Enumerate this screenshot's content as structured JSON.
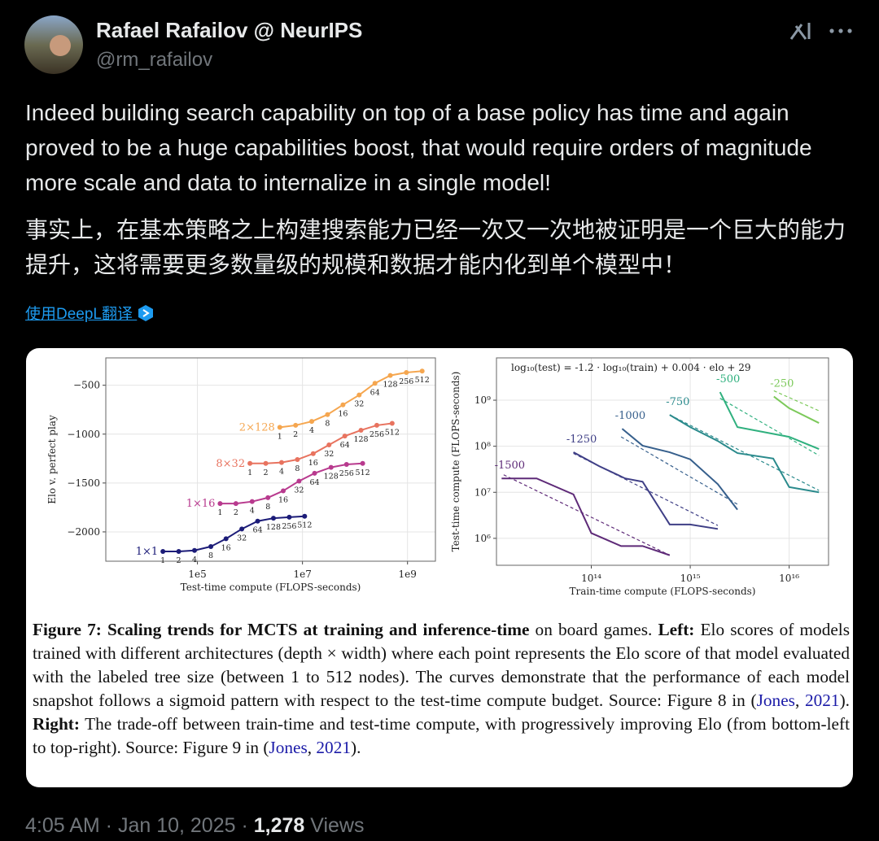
{
  "post": {
    "author": {
      "name": "Rafael Rafailov @ NeurIPS",
      "handle": "@rm_rafailov"
    },
    "text_en": "Indeed building search capability on top of a base policy has time and again proved to be a huge capabilities boost, that would require orders of magnitude more scale and data to internalize in a single model!",
    "text_zh": "事实上，在基本策略之上构建搜索能力已经一次又一次地被证明是一个巨大的能力提升，这将需要更多数量级的规模和数据才能内化到单个模型中！",
    "translate": "使用DeepL翻译",
    "timestamp": "4:05 AM · Jan 10, 2025 ·",
    "views": "1,278",
    "views_label": "Views"
  },
  "figure": {
    "caption_runs": [
      "Figure 7: Scaling trends for MCTS at training and inference-time",
      " on board games. ",
      "Left:",
      " Elo scores of models trained with different architectures (depth × width) where each point represents the Elo score of that model evaluated with the labeled tree size (between 1 to 512 nodes). The curves demonstrate that the performance of each model snapshot follows a sigmoid pattern with respect to the test-time compute budget. Source: Figure 8 in (",
      "Jones",
      ", ",
      "2021",
      "). ",
      "Right:",
      " The trade-off between train-time and test-time compute, with progressively improving Elo (from bottom-left to top-right). Source: Figure 9 in (",
      "Jones",
      ", ",
      "2021",
      ")."
    ]
  },
  "chart_data": [
    {
      "type": "line",
      "xlabel": "Test-time compute (FLOPS-seconds)",
      "ylabel": "Elo v. perfect play",
      "xscale": "log",
      "grid": true,
      "xlim": [
        1800,
        3400000000
      ],
      "ylim": [
        -2300,
        -220
      ],
      "xticks": [
        {
          "value": 100000,
          "label": "1e5"
        },
        {
          "value": 10000000,
          "label": "1e7"
        },
        {
          "value": 1000000000,
          "label": "1e9"
        }
      ],
      "yticks": [
        {
          "value": -500,
          "label": "−500"
        },
        {
          "value": -1000,
          "label": "−1000"
        },
        {
          "value": -1500,
          "label": "−1500"
        },
        {
          "value": -2000,
          "label": "−2000"
        }
      ],
      "series": [
        {
          "name": "1×1",
          "color": "#1c1c78",
          "x": [
            22000,
            44000,
            88000,
            180000,
            350000,
            700000,
            1400000,
            2800000,
            5600000,
            11000000
          ],
          "values": [
            -2200,
            -2200,
            -2190,
            -2150,
            -2070,
            -1970,
            -1890,
            -1860,
            -1850,
            -1840
          ],
          "labels": [
            "1",
            "2",
            "4",
            "8",
            "16",
            "32",
            "64",
            "128",
            "256",
            "512"
          ]
        },
        {
          "name": "1×16",
          "color": "#b83a8e",
          "x": [
            270000,
            540000,
            1100000,
            2200000,
            4300000,
            8600000,
            17000000,
            35000000,
            69000000,
            140000000
          ],
          "values": [
            -1710,
            -1710,
            -1690,
            -1650,
            -1580,
            -1480,
            -1400,
            -1340,
            -1310,
            -1300
          ],
          "labels": [
            "1",
            "2",
            "4",
            "8",
            "16",
            "32",
            "64",
            "128",
            "256",
            "512"
          ]
        },
        {
          "name": "8×32",
          "color": "#e8735f",
          "x": [
            1000000,
            2000000,
            4000000,
            8000000,
            16000000,
            32000000,
            64000000,
            130000000,
            260000000,
            510000000
          ],
          "values": [
            -1300,
            -1300,
            -1290,
            -1260,
            -1200,
            -1110,
            -1020,
            -960,
            -910,
            -890
          ],
          "labels": [
            "1",
            "2",
            "4",
            "8",
            "16",
            "32",
            "64",
            "128",
            "256",
            "512"
          ]
        },
        {
          "name": "2×128",
          "color": "#f5a64f",
          "x": [
            3700000,
            7400000,
            15000000,
            30000000,
            59000000,
            120000000,
            240000000,
            470000000,
            950000000,
            1900000000
          ],
          "values": [
            -930,
            -910,
            -870,
            -800,
            -700,
            -600,
            -480,
            -400,
            -370,
            -355
          ],
          "labels": [
            "1",
            "2",
            "4",
            "8",
            "16",
            "32",
            "64",
            "128",
            "256",
            "512"
          ]
        }
      ]
    },
    {
      "type": "line",
      "title": "log₁₀(test) = -1.2 · log₁₀(train) + 0.004 · elo + 29",
      "xlabel": "Train-time compute (FLOPS-seconds)",
      "ylabel": "Test-time compute (FLOPS-seconds)",
      "xscale": "log",
      "yscale": "log",
      "grid": true,
      "xlim": [
        11000000000000,
        25000000000000000
      ],
      "ylim": [
        260000,
        8300000000
      ],
      "xticks": [
        {
          "value": 100000000000000,
          "label": "10¹⁴"
        },
        {
          "value": 1000000000000000,
          "label": "10¹⁵"
        },
        {
          "value": 10000000000000000,
          "label": "10¹⁶"
        }
      ],
      "yticks": [
        {
          "value": 1000000,
          "label": "10⁶"
        },
        {
          "value": 10000000,
          "label": "10⁷"
        },
        {
          "value": 100000000,
          "label": "10⁸"
        },
        {
          "value": 1000000000,
          "label": "10⁹"
        }
      ],
      "series": [
        {
          "name": "-1500",
          "color": "#5e2a78",
          "x": [
            12400000000000,
            28000000000000,
            66000000000000,
            100000000000000,
            200000000000000,
            330000000000000,
            620000000000000
          ],
          "values": [
            20000000,
            20000000,
            9000000,
            1300000,
            680000,
            680000,
            430000
          ],
          "fit_x": [
            13000000000000,
            620000000000000
          ],
          "fit_y": [
            24000000,
            430000
          ]
        },
        {
          "name": "-1250",
          "color": "#3f3f86",
          "x": [
            66000000000000,
            120000000000000,
            220000000000000,
            330000000000000,
            620000000000000,
            1000000000000000,
            1900000000000000
          ],
          "values": [
            74000000,
            37000000,
            20000000,
            17000000,
            2000000,
            2000000,
            1600000
          ],
          "fit_x": [
            66000000000000,
            1900000000000000
          ],
          "fit_y": [
            70000000,
            1900000
          ]
        },
        {
          "name": "-1000",
          "color": "#365f8c",
          "x": [
            205000000000000,
            330000000000000,
            620000000000000,
            1000000000000000,
            1900000000000000,
            3000000000000000
          ],
          "values": [
            240000000,
            103000000,
            74000000,
            52000000,
            15000000,
            4200000
          ],
          "fit_x": [
            200000000000000,
            3000000000000000
          ],
          "fit_y": [
            160000000,
            5500000
          ]
        },
        {
          "name": "-750",
          "color": "#2a8a8c",
          "x": [
            620000000000000,
            1000000000000000,
            1900000000000000,
            3000000000000000,
            6900000000000000,
            10000000000000000,
            20000000000000000
          ],
          "values": [
            480000000,
            260000000,
            130000000,
            71000000,
            54000000,
            13000000,
            10000000
          ],
          "fit_x": [
            620000000000000,
            20000000000000000
          ],
          "fit_y": [
            480000000,
            11000000
          ]
        },
        {
          "name": "-500",
          "color": "#2fb07e",
          "x": [
            2000000000000000,
            3000000000000000,
            10000000000000000,
            20000000000000000
          ],
          "values": [
            1500000000,
            260000000,
            160000000,
            87000000
          ],
          "fit_x": [
            2000000000000000,
            20000000000000000
          ],
          "fit_y": [
            1100000000,
            63000000
          ]
        },
        {
          "name": "-250",
          "color": "#7cc95a",
          "x": [
            7000000000000000,
            10000000000000000,
            20000000000000000
          ],
          "values": [
            1200000000,
            670000000,
            320000000
          ],
          "fit_x": [
            7000000000000000,
            20000000000000000
          ],
          "fit_y": [
            1600000000,
            590000000
          ]
        }
      ]
    }
  ]
}
